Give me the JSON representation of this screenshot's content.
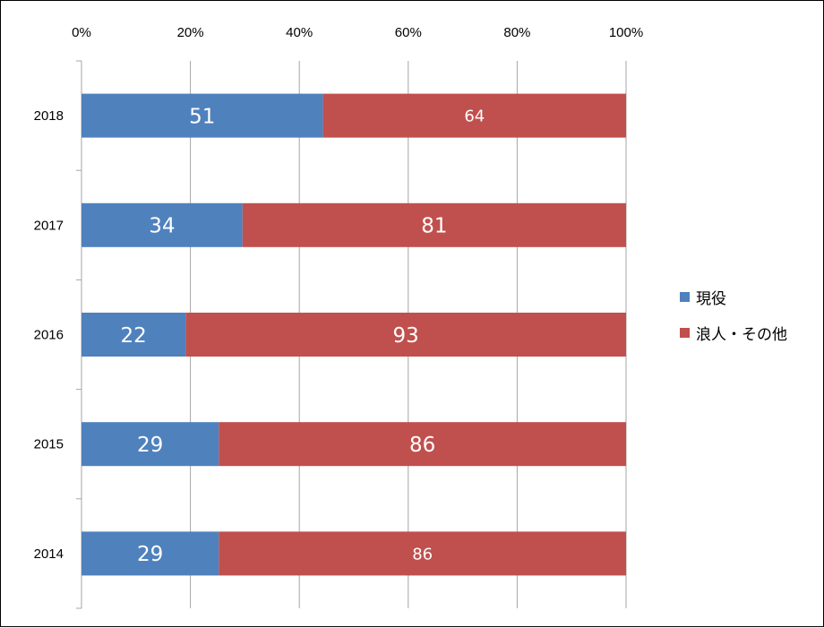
{
  "chart_data": {
    "type": "bar",
    "orientation": "horizontal",
    "stacking": "percent",
    "title": "",
    "xlabel": "",
    "ylabel": "",
    "xlim": [
      0,
      100
    ],
    "x_ticks": [
      "0%",
      "20%",
      "40%",
      "60%",
      "80%",
      "100%"
    ],
    "x_axis_position": "top",
    "grid": true,
    "legend_position": "right",
    "categories": [
      "2018",
      "2017",
      "2016",
      "2015",
      "2014"
    ],
    "series": [
      {
        "name": "現役",
        "color": "#4f81bd",
        "values": [
          51,
          34,
          22,
          29,
          29
        ]
      },
      {
        "name": "浪人・その他",
        "color": "#c0504d",
        "values": [
          64,
          81,
          93,
          86,
          86
        ]
      }
    ],
    "data_labels": [
      [
        "51",
        "64"
      ],
      [
        "34",
        "81"
      ],
      [
        "22",
        "93"
      ],
      [
        "29",
        "86"
      ],
      [
        "29",
        "86"
      ]
    ]
  }
}
